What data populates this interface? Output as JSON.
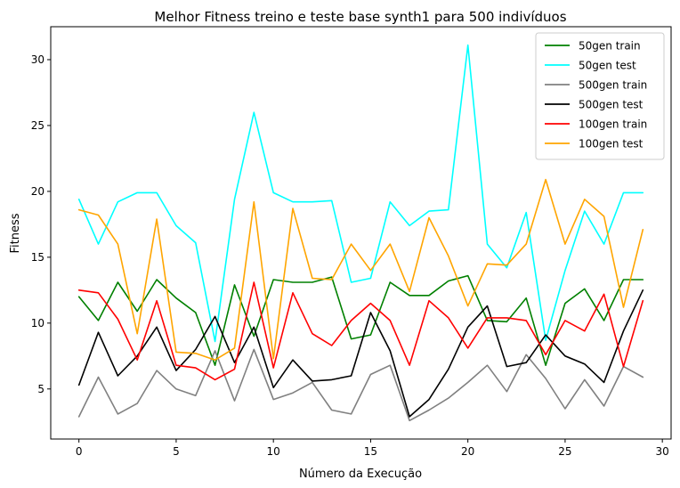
{
  "chart_data": {
    "type": "line",
    "title": "Melhor Fitness treino e teste base synth1 para 500 indivíduos",
    "xlabel": "Número da Execução",
    "ylabel": "Fitness",
    "xlim": [
      -1.45,
      30.45
    ],
    "ylim": [
      1.2,
      32.5
    ],
    "xticks": [
      0,
      5,
      10,
      15,
      20,
      25,
      30
    ],
    "yticks": [
      5,
      10,
      15,
      20,
      25,
      30
    ],
    "legend_position": "top-right",
    "x": [
      0,
      1,
      2,
      3,
      4,
      5,
      6,
      7,
      8,
      9,
      10,
      11,
      12,
      13,
      14,
      15,
      16,
      17,
      18,
      19,
      20,
      21,
      22,
      23,
      24,
      25,
      26,
      27,
      28,
      29
    ],
    "series": [
      {
        "name": "50gen train",
        "color": "#008000",
        "values": [
          12.0,
          10.2,
          13.1,
          10.9,
          13.3,
          11.9,
          10.8,
          6.8,
          12.9,
          9.0,
          13.3,
          13.1,
          13.1,
          13.5,
          8.8,
          9.1,
          13.1,
          12.1,
          12.1,
          13.2,
          13.6,
          10.2,
          10.1,
          11.9,
          6.8,
          11.5,
          12.6,
          10.2,
          13.3,
          13.3
        ]
      },
      {
        "name": "50gen test",
        "color": "#00ffff",
        "values": [
          19.4,
          16.0,
          19.2,
          19.9,
          19.9,
          17.4,
          16.1,
          8.6,
          19.4,
          26.0,
          19.9,
          19.2,
          19.2,
          19.3,
          13.1,
          13.4,
          19.2,
          17.4,
          18.5,
          18.6,
          31.1,
          16.0,
          14.2,
          18.4,
          8.7,
          14.0,
          18.5,
          16.0,
          19.9,
          19.9
        ]
      },
      {
        "name": "500gen train",
        "color": "#808080",
        "values": [
          2.9,
          5.9,
          3.1,
          3.9,
          6.4,
          5.0,
          4.5,
          7.9,
          4.1,
          8.0,
          4.2,
          4.7,
          5.5,
          3.4,
          3.1,
          6.1,
          6.8,
          2.6,
          3.4,
          4.3,
          5.5,
          6.8,
          4.8,
          7.6,
          5.8,
          3.5,
          5.7,
          3.7,
          6.7,
          5.9
        ]
      },
      {
        "name": "500gen test",
        "color": "#000000",
        "values": [
          5.3,
          9.3,
          6.0,
          7.5,
          9.7,
          6.4,
          8.0,
          10.5,
          7.0,
          9.7,
          5.1,
          7.2,
          5.6,
          5.7,
          6.0,
          10.8,
          7.9,
          2.9,
          4.2,
          6.5,
          9.7,
          11.3,
          6.7,
          7.0,
          9.1,
          7.5,
          6.9,
          5.5,
          9.4,
          12.5
        ]
      },
      {
        "name": "100gen train",
        "color": "#ff0000",
        "values": [
          12.5,
          12.3,
          10.3,
          7.2,
          11.7,
          6.8,
          6.6,
          5.7,
          6.5,
          13.1,
          6.6,
          12.3,
          9.2,
          8.3,
          10.2,
          11.5,
          10.2,
          6.8,
          11.7,
          10.4,
          8.1,
          10.4,
          10.4,
          10.2,
          7.6,
          10.2,
          9.4,
          12.2,
          6.7,
          11.7
        ]
      },
      {
        "name": "100gen test",
        "color": "#ffa500",
        "values": [
          18.6,
          18.2,
          16.0,
          9.2,
          17.9,
          7.8,
          7.7,
          7.2,
          8.1,
          19.2,
          7.3,
          18.7,
          13.4,
          13.3,
          16.0,
          14.0,
          16.0,
          12.4,
          18.0,
          15.1,
          11.3,
          14.5,
          14.4,
          16.0,
          20.9,
          16.0,
          19.4,
          18.1,
          11.2,
          17.1
        ]
      }
    ]
  }
}
